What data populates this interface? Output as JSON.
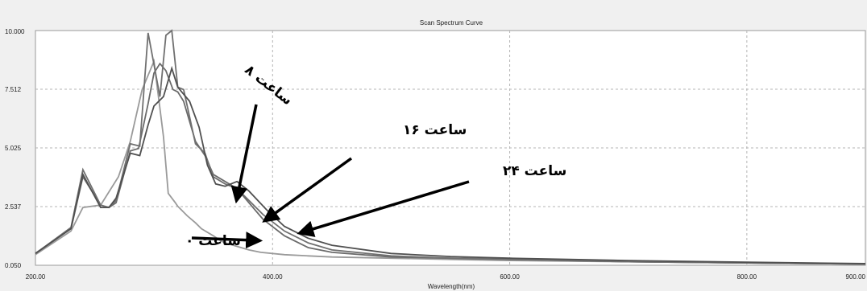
{
  "chart_data": {
    "type": "line",
    "title": "Scan Spectrum Curve",
    "xlabel": "Wavelength(nm)",
    "ylabel": "",
    "xlim": [
      200,
      900
    ],
    "ylim": [
      0.05,
      10.0
    ],
    "grid": true,
    "x_ticks": [
      "200.00",
      "400.00",
      "600.00",
      "800.00",
      "900.00"
    ],
    "x_tick_values": [
      200,
      400,
      600,
      800,
      900
    ],
    "y_ticks": [
      "0.050",
      "2.537",
      "5.025",
      "7.512",
      "10.000"
    ],
    "y_tick_values": [
      0.05,
      2.537,
      5.025,
      7.512,
      10.0
    ],
    "series": [
      {
        "x": [
          200,
          230,
          240,
          255,
          270,
          280,
          290,
          300,
          308,
          312,
          318,
          320,
          324,
          328,
          335,
          340,
          350,
          356,
          360,
          370,
          380,
          390,
          410,
          430,
          450,
          500,
          550,
          600,
          700,
          800,
          900
        ],
        "y": [
          0.5,
          1.5,
          2.5,
          2.6,
          3.8,
          5.3,
          7.5,
          8.7,
          5.5,
          3.1,
          2.7,
          2.55,
          2.35,
          2.15,
          1.85,
          1.6,
          1.3,
          1.1,
          1.0,
          0.85,
          0.7,
          0.6,
          0.5,
          0.45,
          0.4,
          0.35,
          0.3,
          0.25,
          0.2,
          0.15,
          0.1
        ]
      },
      {
        "x": [
          200,
          230,
          240,
          255,
          262,
          268,
          280,
          287,
          295,
          300,
          305,
          310,
          316,
          320,
          325,
          335,
          343,
          350,
          360,
          370,
          380,
          392,
          410,
          430,
          450,
          500,
          550,
          600,
          700,
          800,
          900
        ],
        "y": [
          0.55,
          1.6,
          3.8,
          2.6,
          2.5,
          2.7,
          4.9,
          5.0,
          6.9,
          8.2,
          8.6,
          8.3,
          7.5,
          7.4,
          7.0,
          5.3,
          4.7,
          3.9,
          3.6,
          3.3,
          2.7,
          2.0,
          1.3,
          0.8,
          0.6,
          0.4,
          0.35,
          0.3,
          0.2,
          0.15,
          0.1
        ]
      },
      {
        "x": [
          200,
          230,
          240,
          255,
          262,
          268,
          280,
          288,
          295,
          305,
          310,
          315,
          320,
          325,
          335,
          343,
          350,
          360,
          370,
          380,
          392,
          410,
          430,
          450,
          500,
          550,
          600,
          700,
          800,
          900
        ],
        "y": [
          0.55,
          1.65,
          4.1,
          2.6,
          2.5,
          2.8,
          5.2,
          5.1,
          9.9,
          7.2,
          9.8,
          10.0,
          7.6,
          7.5,
          5.2,
          4.8,
          3.8,
          3.5,
          3.3,
          2.8,
          2.2,
          1.5,
          1.0,
          0.7,
          0.45,
          0.35,
          0.3,
          0.2,
          0.15,
          0.1
        ]
      },
      {
        "x": [
          200,
          230,
          240,
          255,
          262,
          268,
          280,
          288,
          295,
          300,
          308,
          315,
          320,
          330,
          338,
          345,
          352,
          360,
          370,
          380,
          395,
          410,
          430,
          450,
          500,
          550,
          600,
          700,
          800,
          900
        ],
        "y": [
          0.55,
          1.6,
          3.9,
          2.5,
          2.5,
          2.9,
          4.8,
          4.7,
          6.0,
          6.8,
          7.2,
          8.4,
          7.6,
          7.0,
          5.9,
          4.3,
          3.5,
          3.4,
          3.6,
          3.2,
          2.4,
          1.7,
          1.2,
          0.9,
          0.55,
          0.42,
          0.35,
          0.25,
          0.18,
          0.12
        ]
      }
    ],
    "annotations": [
      {
        "text": "ساعت ۰",
        "arrow_tip": [
          387,
          1.1
        ]
      },
      {
        "text": "ساعت ۸",
        "arrow_tip": [
          370,
          2.9
        ]
      },
      {
        "text": "ساعت ۱۶",
        "arrow_tip": [
          395,
          2.0
        ]
      },
      {
        "text": "ساعت ۲۴",
        "arrow_tip": [
          425,
          1.45
        ]
      }
    ]
  }
}
